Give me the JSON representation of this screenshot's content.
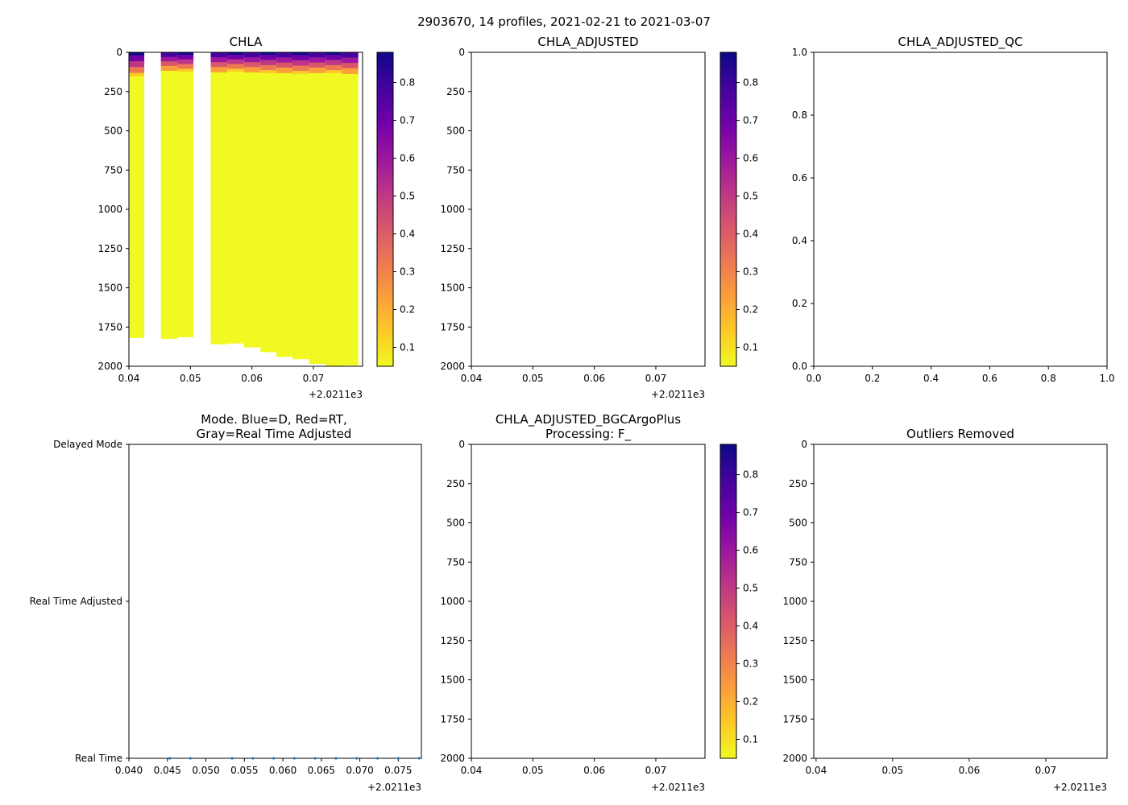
{
  "figure": {
    "suptitle": "2903670, 14 profiles, 2021-02-21 to 2021-03-07"
  },
  "colors": {
    "cmap": [
      "#f0f921",
      "#fdca26",
      "#fb9f3a",
      "#ed7953",
      "#d8576b",
      "#bd3786",
      "#9c179e",
      "#7201a8",
      "#46039f",
      "#0d0887"
    ],
    "mode_points": "#1f77b4",
    "axis": "#000000"
  },
  "chart_data": [
    {
      "id": "chla",
      "type": "heatmap",
      "title": "CHLA",
      "xlim": [
        0.04,
        0.078
      ],
      "x_ticks": [
        "0.04",
        "0.05",
        "0.06",
        "0.07"
      ],
      "x_offset_label": "+2.0211e3",
      "ylim": [
        2000,
        0
      ],
      "y_ticks": [
        "0",
        "250",
        "500",
        "750",
        "1000",
        "1250",
        "1500",
        "1750",
        "2000"
      ],
      "colorbar": {
        "vmin": 0.05,
        "vmax": 0.88,
        "ticks": [
          "0.1",
          "0.2",
          "0.3",
          "0.4",
          "0.5",
          "0.6",
          "0.7",
          "0.8"
        ]
      },
      "profiles": [
        {
          "x0": 0.04,
          "x1": 0.0425,
          "max_depth": 1820,
          "surface_depth": 150
        },
        {
          "x0": 0.0452,
          "x1": 0.0479,
          "max_depth": 1825,
          "surface_depth": 115
        },
        {
          "x0": 0.0479,
          "x1": 0.0505,
          "max_depth": 1815,
          "surface_depth": 120
        },
        {
          "x0": 0.0533,
          "x1": 0.056,
          "max_depth": 1860,
          "surface_depth": 125
        },
        {
          "x0": 0.056,
          "x1": 0.0587,
          "max_depth": 1855,
          "surface_depth": 120
        },
        {
          "x0": 0.0587,
          "x1": 0.0614,
          "max_depth": 1880,
          "surface_depth": 125
        },
        {
          "x0": 0.0614,
          "x1": 0.064,
          "max_depth": 1910,
          "surface_depth": 130
        },
        {
          "x0": 0.064,
          "x1": 0.0666,
          "max_depth": 1940,
          "surface_depth": 130
        },
        {
          "x0": 0.0666,
          "x1": 0.0693,
          "max_depth": 1955,
          "surface_depth": 135
        },
        {
          "x0": 0.0693,
          "x1": 0.072,
          "max_depth": 1985,
          "surface_depth": 130
        },
        {
          "x0": 0.072,
          "x1": 0.0746,
          "max_depth": 2000,
          "surface_depth": 130
        },
        {
          "x0": 0.0746,
          "x1": 0.0773,
          "max_depth": 1995,
          "surface_depth": 135
        }
      ]
    },
    {
      "id": "chla_adjusted",
      "type": "heatmap",
      "title": "CHLA_ADJUSTED",
      "xlim": [
        0.04,
        0.078
      ],
      "x_ticks": [
        "0.04",
        "0.05",
        "0.06",
        "0.07"
      ],
      "x_offset_label": "+2.0211e3",
      "ylim": [
        2000,
        0
      ],
      "y_ticks": [
        "0",
        "250",
        "500",
        "750",
        "1000",
        "1250",
        "1500",
        "1750",
        "2000"
      ],
      "colorbar": {
        "vmin": 0.05,
        "vmax": 0.88,
        "ticks": [
          "0.1",
          "0.2",
          "0.3",
          "0.4",
          "0.5",
          "0.6",
          "0.7",
          "0.8"
        ]
      }
    },
    {
      "id": "chla_adjusted_qc",
      "type": "scatter",
      "title": "CHLA_ADJUSTED_QC",
      "xlim": [
        0,
        1
      ],
      "x_ticks": [
        "0.0",
        "0.2",
        "0.4",
        "0.6",
        "0.8",
        "1.0"
      ],
      "ylim": [
        0,
        1
      ],
      "y_ticks": [
        "0.0",
        "0.2",
        "0.4",
        "0.6",
        "0.8",
        "1.0"
      ]
    },
    {
      "id": "mode",
      "type": "scatter",
      "title_lines": [
        "Mode. Blue=D, Red=RT,",
        "Gray=Real Time Adjusted"
      ],
      "xlim": [
        0.04,
        0.078
      ],
      "x_ticks": [
        "0.040",
        "0.045",
        "0.050",
        "0.055",
        "0.060",
        "0.065",
        "0.070",
        "0.075"
      ],
      "x_offset_label": "+2.0211e3",
      "y_categories": [
        "Delayed Mode",
        "Real Time Adjusted",
        "Real Time"
      ],
      "points_x": [
        0.0453,
        0.048,
        0.0534,
        0.0561,
        0.0588,
        0.0615,
        0.0642,
        0.0669,
        0.0696,
        0.0723,
        0.075,
        0.0777
      ],
      "points_category": "Real Time"
    },
    {
      "id": "chla_bgc",
      "type": "heatmap",
      "title_lines": [
        "CHLA_ADJUSTED_BGCArgoPlus",
        "Processing: F_"
      ],
      "xlim": [
        0.04,
        0.078
      ],
      "x_ticks": [
        "0.04",
        "0.05",
        "0.06",
        "0.07"
      ],
      "x_offset_label": "+2.0211e3",
      "ylim": [
        2000,
        0
      ],
      "y_ticks": [
        "0",
        "250",
        "500",
        "750",
        "1000",
        "1250",
        "1500",
        "1750",
        "2000"
      ],
      "colorbar": {
        "vmin": 0.05,
        "vmax": 0.88,
        "ticks": [
          "0.1",
          "0.2",
          "0.3",
          "0.4",
          "0.5",
          "0.6",
          "0.7",
          "0.8"
        ]
      }
    },
    {
      "id": "outliers",
      "type": "scatter",
      "title": "Outliers Removed",
      "xlim": [
        0.0397,
        0.078
      ],
      "x_ticks": [
        "0.04",
        "0.05",
        "0.06",
        "0.07"
      ],
      "x_offset_label": "+2.0211e3",
      "ylim": [
        2000,
        0
      ],
      "y_ticks": [
        "0",
        "250",
        "500",
        "750",
        "1000",
        "1250",
        "1500",
        "1750",
        "2000"
      ]
    }
  ]
}
